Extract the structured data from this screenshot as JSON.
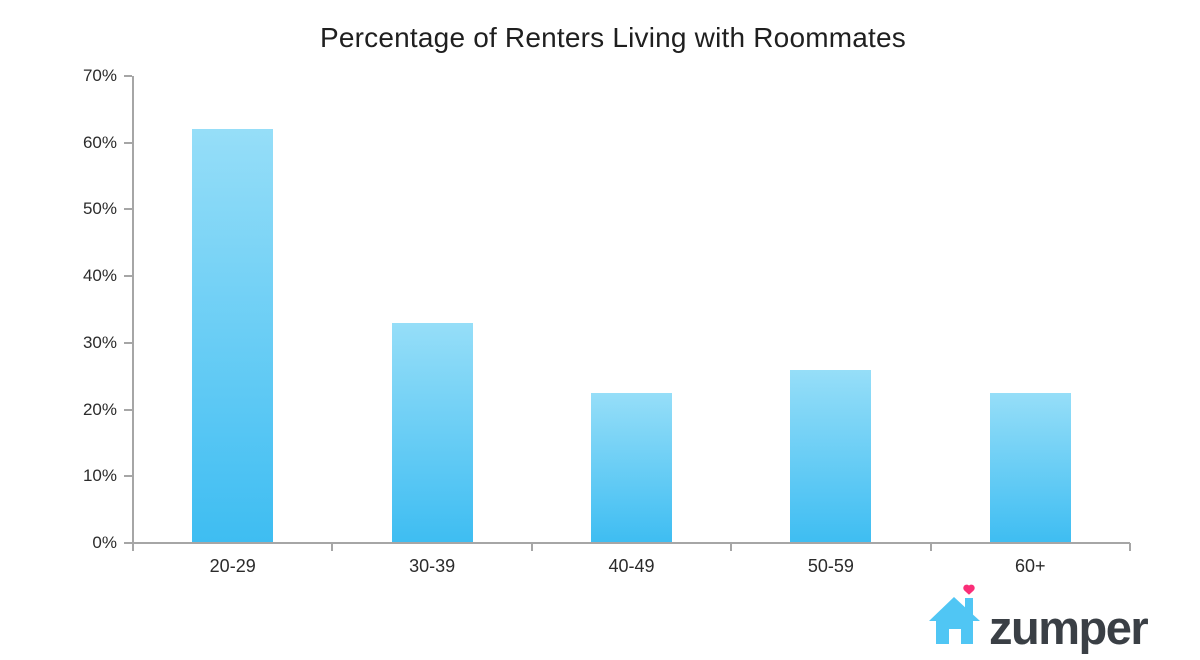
{
  "chart_data": {
    "type": "bar",
    "title": "Percentage of Renters Living with Roommates",
    "categories": [
      "20-29",
      "30-39",
      "40-49",
      "50-59",
      "60+"
    ],
    "values": [
      62,
      33,
      22.5,
      26,
      22.5
    ],
    "xlabel": "",
    "ylabel": "",
    "ylim": [
      0,
      70
    ],
    "y_tick_step": 10,
    "y_tick_labels": [
      "0%",
      "10%",
      "20%",
      "30%",
      "40%",
      "50%",
      "60%",
      "70%"
    ],
    "grid": false,
    "legend": "none",
    "bar_gradient_top": "#96DEF8",
    "bar_gradient_bottom": "#3EBDF2",
    "axis_color": "#A6A6A6",
    "label_color": "#2B2B2B",
    "title_color": "#1F1F1F"
  },
  "branding": {
    "logo_text": "zumper",
    "house_color": "#50C6F4",
    "heart_color": "#FA2E78",
    "logo_text_color": "#3A3F45"
  }
}
